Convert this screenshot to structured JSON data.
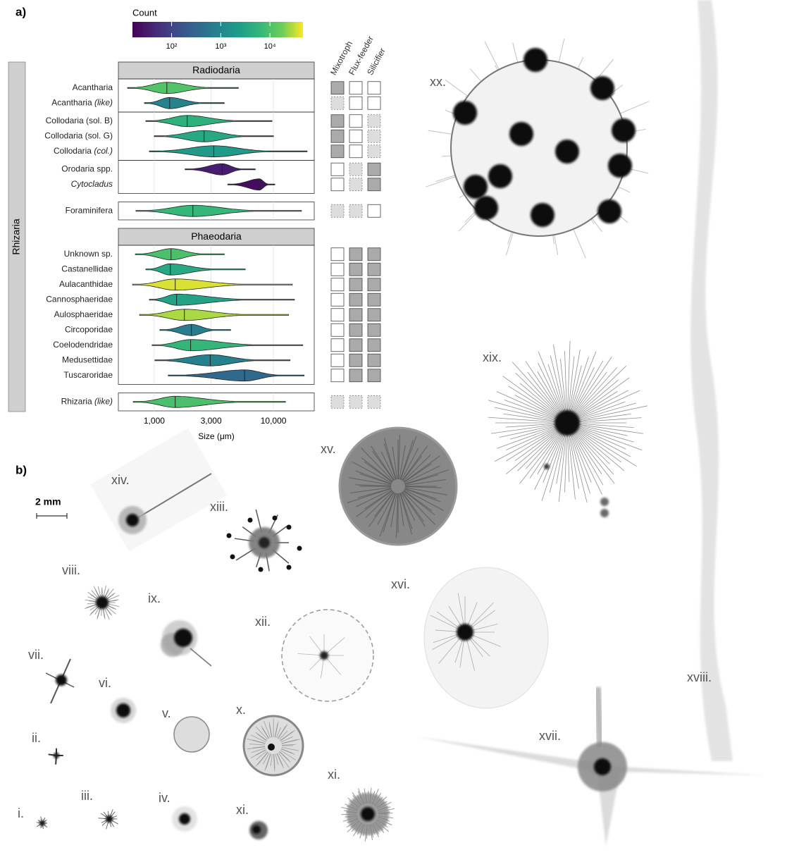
{
  "panel_a": {
    "label": "a)",
    "colorbar": {
      "title": "Count",
      "lim": [
        16,
        47000
      ],
      "ticks": [
        {
          "value": 100,
          "label": "10²"
        },
        {
          "value": 1000,
          "label": "10³"
        },
        {
          "value": 10000,
          "label": "10⁴"
        }
      ]
    },
    "side_label": "Rhizaria",
    "trait_headers": [
      "Mixotroph",
      "Flux-feeder",
      "Silicifier"
    ],
    "xaxis": {
      "label": "Size (μm)",
      "log": true,
      "lim": [
        500,
        22000
      ],
      "ticks": [
        {
          "value": 1000,
          "label": "1,000"
        },
        {
          "value": 3000,
          "label": "3,000"
        },
        {
          "value": 10000,
          "label": "10,000"
        }
      ]
    },
    "sections": [
      {
        "title": "Radiodaria",
        "blocks": [
          [
            {
              "name": "Acantharia",
              "min": 597,
              "median": 1276,
              "max": 5080,
              "count": 11000,
              "traits": [
                "yes",
                "no",
                "no"
              ]
            },
            {
              "name": "Acantharia",
              "qualifier": "(like)",
              "min": 827,
              "median": 1347,
              "max": 3870,
              "count": 900,
              "traits": [
                "unknown",
                "no",
                "no"
              ]
            }
          ],
          [
            {
              "name": "Collodaria (sol. B)",
              "min": 850,
              "median": 1890,
              "max": 9730,
              "count": 5000,
              "traits": [
                "yes",
                "no",
                "unknown"
              ]
            },
            {
              "name": "Collodaria (sol. G)",
              "min": 1000,
              "median": 2620,
              "max": 10000,
              "count": 3600,
              "traits": [
                "yes",
                "no",
                "unknown"
              ]
            },
            {
              "name": "Collodaria",
              "qualifier": "(col.)",
              "min": 910,
              "median": 3160,
              "max": 19170,
              "count": 2200,
              "traits": [
                "yes",
                "no",
                "unknown"
              ]
            }
          ],
          [
            {
              "name": "Orodaria spp.",
              "min": 1815,
              "median": 3720,
              "max": 7040,
              "count": 35,
              "traits": [
                "no",
                "unknown",
                "yes"
              ]
            },
            {
              "name": "Cytocladus",
              "italic": true,
              "min": 4140,
              "median": 7610,
              "max": 10260,
              "count": 22,
              "traits": [
                "no",
                "unknown",
                "yes"
              ]
            }
          ]
        ]
      },
      {
        "blocks": [
          [
            {
              "name": "Foraminifera",
              "min": 703,
              "median": 2110,
              "max": 17200,
              "count": 6300,
              "traits": [
                "unknown",
                "unknown",
                "no"
              ]
            }
          ]
        ]
      },
      {
        "title": "Phaeodaria",
        "blocks": [
          [
            {
              "name": "Unknown sp.",
              "min": 694,
              "median": 1384,
              "max": 3870,
              "count": 9500,
              "traits": [
                "no",
                "yes",
                "yes"
              ]
            },
            {
              "name": "Castanellidae",
              "min": 850,
              "median": 1365,
              "max": 5800,
              "count": 3600,
              "traits": [
                "no",
                "yes",
                "yes"
              ]
            },
            {
              "name": "Aulacanthidae",
              "min": 657,
              "median": 1500,
              "max": 14400,
              "count": 37000,
              "traits": [
                "no",
                "yes",
                "yes"
              ]
            },
            {
              "name": "Cannosphaeridae",
              "min": 910,
              "median": 1540,
              "max": 15000,
              "count": 2900,
              "traits": [
                "no",
                "yes",
                "yes"
              ]
            },
            {
              "name": "Aulosphaeridae",
              "min": 753,
              "median": 1790,
              "max": 13400,
              "count": 27000,
              "traits": [
                "no",
                "yes",
                "yes"
              ]
            },
            {
              "name": "Circoporidae",
              "min": 1115,
              "median": 2050,
              "max": 4370,
              "count": 750,
              "traits": [
                "no",
                "yes",
                "yes"
              ]
            },
            {
              "name": "Coelodendridae",
              "min": 960,
              "median": 2020,
              "max": 17600,
              "count": 6000,
              "traits": [
                "no",
                "yes",
                "yes"
              ]
            },
            {
              "name": "Medusettidae",
              "min": 1014,
              "median": 2950,
              "max": 13800,
              "count": 850,
              "traits": [
                "no",
                "yes",
                "yes"
              ]
            },
            {
              "name": "Tuscaroridae",
              "min": 1310,
              "median": 5730,
              "max": 18100,
              "count": 330,
              "traits": [
                "no",
                "yes",
                "yes"
              ]
            }
          ]
        ]
      },
      {
        "blocks": [
          [
            {
              "name": "Rhizaria",
              "qualifier": "(like)",
              "min": 666,
              "median": 1500,
              "max": 12600,
              "count": 9500,
              "traits": [
                "unknown",
                "unknown",
                "unknown"
              ]
            }
          ]
        ]
      }
    ]
  },
  "panel_b": {
    "label": "b)",
    "scale_bar": "2 mm",
    "images": [
      "xx.",
      "xix.",
      "xviii.",
      "xvii.",
      "xvi.",
      "xv.",
      "xiv.",
      "xiii.",
      "xii.",
      "xi.",
      "xi.",
      "x.",
      "ix.",
      "viii.",
      "vii.",
      "vi.",
      "v.",
      "iv.",
      "iii.",
      "ii.",
      "i."
    ]
  }
}
